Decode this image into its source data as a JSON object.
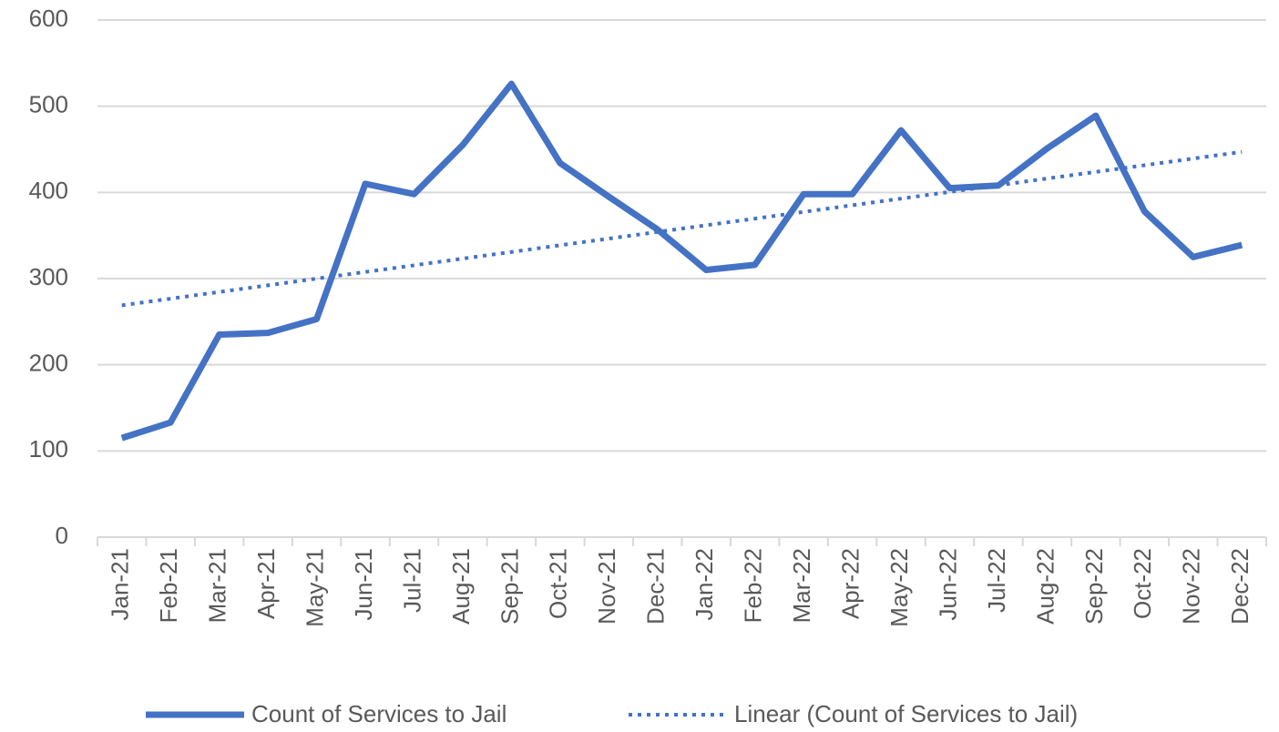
{
  "chart_data": {
    "type": "line",
    "categories": [
      "Jan-21",
      "Feb-21",
      "Mar-21",
      "Apr-21",
      "May-21",
      "Jun-21",
      "Jul-21",
      "Aug-21",
      "Sep-21",
      "Oct-21",
      "Nov-21",
      "Dec-21",
      "Jan-22",
      "Feb-22",
      "Mar-22",
      "Apr-22",
      "May-22",
      "Jun-22",
      "Jul-22",
      "Aug-22",
      "Sep-22",
      "Oct-22",
      "Nov-22",
      "Dec-22"
    ],
    "series": [
      {
        "name": "Count of Services to Jail",
        "color": "#4472c4",
        "style": "solid",
        "values": [
          115,
          133,
          235,
          237,
          253,
          410,
          398,
          455,
          526,
          434,
          395,
          357,
          310,
          316,
          398,
          398,
          472,
          405,
          408,
          451,
          489,
          378,
          325,
          339
        ]
      },
      {
        "name": "Linear (Count of Services to Jail)",
        "color": "#4472c4",
        "style": "dotted",
        "values": [
          269,
          276.7,
          284.5,
          292.2,
          300,
          307.7,
          315.4,
          323.2,
          330.9,
          338.7,
          346.4,
          354.1,
          361.9,
          369.6,
          377.4,
          385.1,
          392.8,
          400.6,
          408.3,
          416.1,
          423.8,
          431.5,
          439.3,
          447
        ]
      }
    ],
    "ylim": [
      0,
      600
    ],
    "yticks": [
      0,
      100,
      200,
      300,
      400,
      500,
      600
    ],
    "grid": true,
    "legend": "bottom"
  }
}
